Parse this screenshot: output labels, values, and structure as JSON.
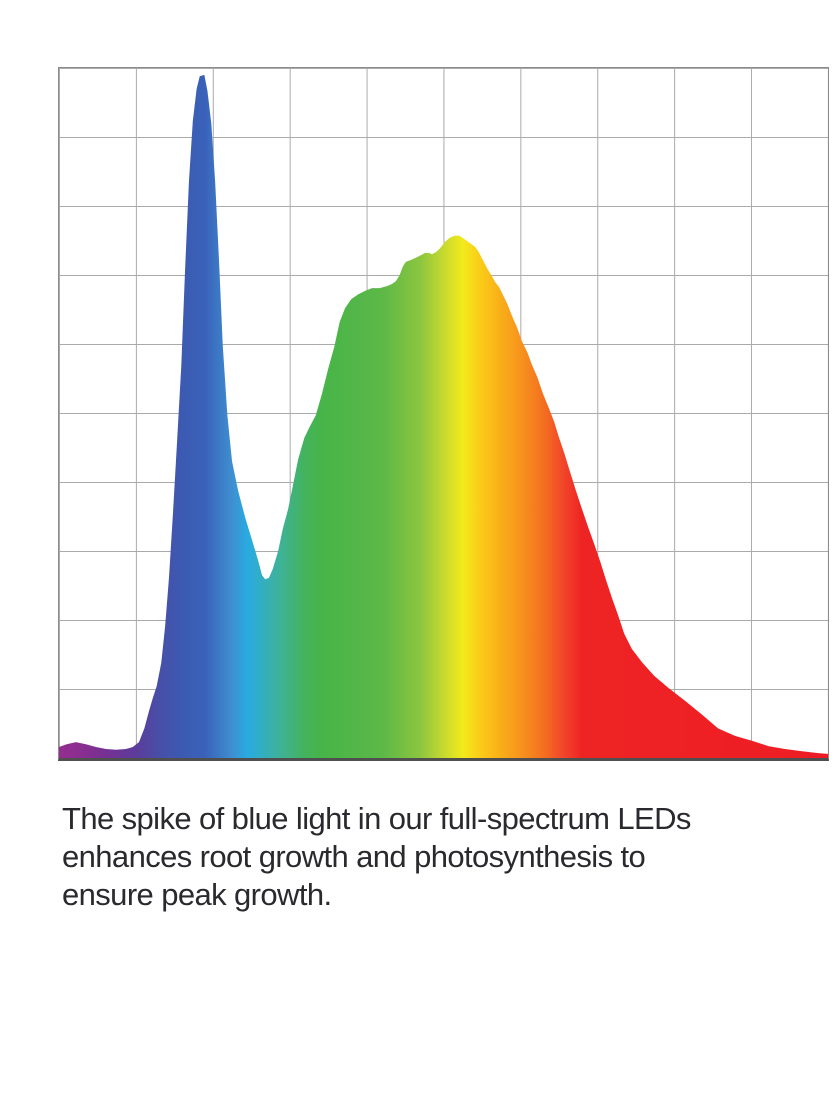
{
  "colors": {
    "page_bg": "#ffffff",
    "chart_bg": "#ffffff",
    "grid_line": "#aaaaaa",
    "chart_border": "#8c8c8c",
    "axis_bottom": "#4f4f4f",
    "caption_text": "#2a2a2e"
  },
  "caption": {
    "lines": [
      "The spike of blue light in our full-spectrum LEDs",
      "enhances root growth and photosynthesis to",
      "ensure peak growth."
    ],
    "full_text": "The spike of blue light in our full-spectrum LEDs enhances root growth and photosynthesis to ensure peak growth."
  },
  "chart_data": {
    "type": "area",
    "title": "",
    "xlabel": "",
    "ylabel": "",
    "x_axis": {
      "label": "",
      "tick_labels": []
    },
    "y_axis": {
      "label": "",
      "tick_labels": []
    },
    "grid": {
      "visible": true,
      "columns": 10,
      "rows": 10
    },
    "legend": {
      "visible": false
    },
    "notable_features": {
      "blue_spike_peak": {
        "x_pct": 18.6,
        "intensity_pct": 99
      },
      "valley_between_peaks": {
        "x_pct": 26.8,
        "intensity_pct": 26
      },
      "broad_peak": {
        "x_pct": 51.7,
        "intensity_pct": 75.7
      }
    },
    "series": [
      {
        "name": "full-spectrum-led-output",
        "points": [
          [
            0,
            1.6
          ],
          [
            1.0,
            2.0
          ],
          [
            2.2,
            2.3
          ],
          [
            3.5,
            2.0
          ],
          [
            4.8,
            1.6
          ],
          [
            6.1,
            1.3
          ],
          [
            7.4,
            1.2
          ],
          [
            8.7,
            1.3
          ],
          [
            9.6,
            1.6
          ],
          [
            10.4,
            2.3
          ],
          [
            11.1,
            4.3
          ],
          [
            11.7,
            6.8
          ],
          [
            12.2,
            8.7
          ],
          [
            12.7,
            10.4
          ],
          [
            13.3,
            13.8
          ],
          [
            13.8,
            19.1
          ],
          [
            14.3,
            26.1
          ],
          [
            14.8,
            35.1
          ],
          [
            15.3,
            44.8
          ],
          [
            15.9,
            56.8
          ],
          [
            16.4,
            70.9
          ],
          [
            16.9,
            83.6
          ],
          [
            17.4,
            92.3
          ],
          [
            17.9,
            97.0
          ],
          [
            18.3,
            98.8
          ],
          [
            18.9,
            99.0
          ],
          [
            19.3,
            96.7
          ],
          [
            19.8,
            92.0
          ],
          [
            20.3,
            83.6
          ],
          [
            20.8,
            72.3
          ],
          [
            21.3,
            59.7
          ],
          [
            21.9,
            49.6
          ],
          [
            22.5,
            43.0
          ],
          [
            23.3,
            38.7
          ],
          [
            24.2,
            34.9
          ],
          [
            25.1,
            31.6
          ],
          [
            25.9,
            28.6
          ],
          [
            26.4,
            26.5
          ],
          [
            26.8,
            25.9
          ],
          [
            27.3,
            26.1
          ],
          [
            27.8,
            27.4
          ],
          [
            28.5,
            30.0
          ],
          [
            29.1,
            33.2
          ],
          [
            29.8,
            36.1
          ],
          [
            30.4,
            39.4
          ],
          [
            31.1,
            43.3
          ],
          [
            31.9,
            46.4
          ],
          [
            32.6,
            48.0
          ],
          [
            33.4,
            49.7
          ],
          [
            34.2,
            52.8
          ],
          [
            35.0,
            56.4
          ],
          [
            35.8,
            59.6
          ],
          [
            36.5,
            63.2
          ],
          [
            37.2,
            65.2
          ],
          [
            38.0,
            66.5
          ],
          [
            38.9,
            67.2
          ],
          [
            39.8,
            67.7
          ],
          [
            40.7,
            68.1
          ],
          [
            41.7,
            68.1
          ],
          [
            42.7,
            68.4
          ],
          [
            43.3,
            68.7
          ],
          [
            43.8,
            69.1
          ],
          [
            44.3,
            70.0
          ],
          [
            44.7,
            71.2
          ],
          [
            45.1,
            71.9
          ],
          [
            45.8,
            72.2
          ],
          [
            46.4,
            72.5
          ],
          [
            47.1,
            72.9
          ],
          [
            47.6,
            73.2
          ],
          [
            48.1,
            73.2
          ],
          [
            48.5,
            73.0
          ],
          [
            49.0,
            73.3
          ],
          [
            49.5,
            73.8
          ],
          [
            50.2,
            74.8
          ],
          [
            50.8,
            75.4
          ],
          [
            51.5,
            75.7
          ],
          [
            52.0,
            75.7
          ],
          [
            52.5,
            75.4
          ],
          [
            53.1,
            74.9
          ],
          [
            53.6,
            74.5
          ],
          [
            54.1,
            74.1
          ],
          [
            54.6,
            73.3
          ],
          [
            55.1,
            72.2
          ],
          [
            55.7,
            70.9
          ],
          [
            56.2,
            70.0
          ],
          [
            56.7,
            69.0
          ],
          [
            57.2,
            68.3
          ],
          [
            57.7,
            67.2
          ],
          [
            58.3,
            65.8
          ],
          [
            58.9,
            64.1
          ],
          [
            59.6,
            62.3
          ],
          [
            60.2,
            60.4
          ],
          [
            60.9,
            58.8
          ],
          [
            61.5,
            57.0
          ],
          [
            62.2,
            55.2
          ],
          [
            62.9,
            52.9
          ],
          [
            63.7,
            50.7
          ],
          [
            64.4,
            48.7
          ],
          [
            65.0,
            46.5
          ],
          [
            65.7,
            44.2
          ],
          [
            66.5,
            41.3
          ],
          [
            67.2,
            38.8
          ],
          [
            68.0,
            36.1
          ],
          [
            68.8,
            33.5
          ],
          [
            69.6,
            31.0
          ],
          [
            70.4,
            28.4
          ],
          [
            71.1,
            25.9
          ],
          [
            71.9,
            23.2
          ],
          [
            72.7,
            20.7
          ],
          [
            73.5,
            18.0
          ],
          [
            74.5,
            15.8
          ],
          [
            75.8,
            13.9
          ],
          [
            77.4,
            11.9
          ],
          [
            79.3,
            10.1
          ],
          [
            81.4,
            8.3
          ],
          [
            83.5,
            6.4
          ],
          [
            85.7,
            4.3
          ],
          [
            87.9,
            3.2
          ],
          [
            90.1,
            2.5
          ],
          [
            92.3,
            1.7
          ],
          [
            94.4,
            1.3
          ],
          [
            96.5,
            1.0
          ],
          [
            98.7,
            0.7
          ],
          [
            100,
            0.6
          ]
        ]
      }
    ],
    "gradient_stops": [
      {
        "offset": 0,
        "color": "#952D90"
      },
      {
        "offset": 3,
        "color": "#8A2E90"
      },
      {
        "offset": 6,
        "color": "#763093"
      },
      {
        "offset": 10,
        "color": "#5C3C9B"
      },
      {
        "offset": 13,
        "color": "#474FA7"
      },
      {
        "offset": 16,
        "color": "#3C5AB2"
      },
      {
        "offset": 19,
        "color": "#3A62BA"
      },
      {
        "offset": 22.5,
        "color": "#3E8FD0"
      },
      {
        "offset": 24.5,
        "color": "#29ABE2"
      },
      {
        "offset": 29,
        "color": "#3FB294"
      },
      {
        "offset": 32,
        "color": "#43B35C"
      },
      {
        "offset": 34,
        "color": "#47B449"
      },
      {
        "offset": 42,
        "color": "#5CB847"
      },
      {
        "offset": 47,
        "color": "#8CC63F"
      },
      {
        "offset": 50,
        "color": "#C6D92F"
      },
      {
        "offset": 52.5,
        "color": "#F2EA1C"
      },
      {
        "offset": 55,
        "color": "#FBC918"
      },
      {
        "offset": 57,
        "color": "#F9B318"
      },
      {
        "offset": 60,
        "color": "#F7941D"
      },
      {
        "offset": 63,
        "color": "#F4701F"
      },
      {
        "offset": 65.5,
        "color": "#F1472A"
      },
      {
        "offset": 68,
        "color": "#EE2424"
      },
      {
        "offset": 100,
        "color": "#ED1C24"
      }
    ]
  }
}
